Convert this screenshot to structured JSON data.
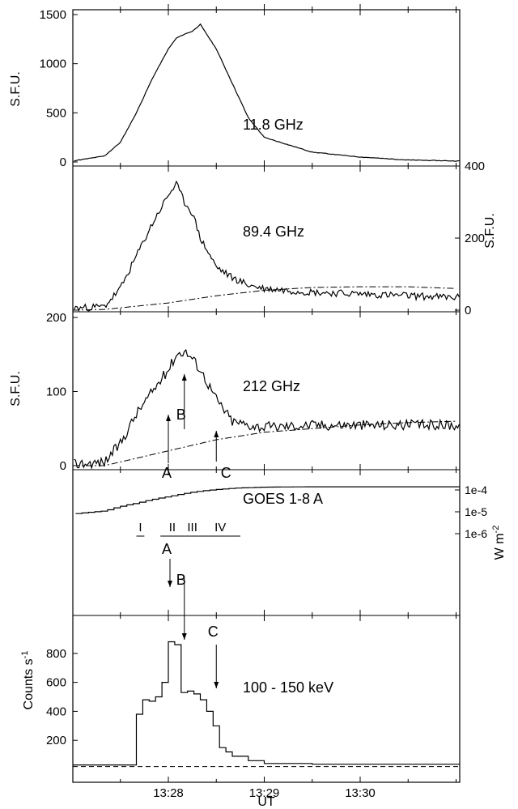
{
  "chart_data": [
    {
      "type": "line",
      "panel": "11.8 GHz",
      "label": "11.8 GHz",
      "ylabel": "S.F.U.",
      "yticks": [
        "0",
        "500",
        "1000",
        "1500"
      ],
      "ylim": [
        0,
        1500
      ],
      "x_time": [
        "13:26:30",
        "13:27:00",
        "13:27:20",
        "13:27:30",
        "13:27:40",
        "13:27:50",
        "13:28:00",
        "13:28:05",
        "13:28:10",
        "13:28:15",
        "13:28:20",
        "13:28:30",
        "13:28:40",
        "13:28:50",
        "13:29:00",
        "13:29:30",
        "13:30:00",
        "13:30:30",
        "13:31:00"
      ],
      "y": [
        0,
        10,
        60,
        200,
        500,
        850,
        1150,
        1260,
        1300,
        1330,
        1400,
        1150,
        800,
        450,
        250,
        100,
        50,
        20,
        10
      ]
    },
    {
      "type": "line",
      "panel": "89.4 GHz",
      "label": "89.4 GHz",
      "ylabel": "S.F.U.",
      "yticks": [
        "0",
        "200",
        "400"
      ],
      "ylim": [
        0,
        400
      ],
      "x_time": [
        "13:26:30",
        "13:27:00",
        "13:27:20",
        "13:27:30",
        "13:27:40",
        "13:27:50",
        "13:28:00",
        "13:28:05",
        "13:28:10",
        "13:28:15",
        "13:28:20",
        "13:28:30",
        "13:28:40",
        "13:28:50",
        "13:29:00",
        "13:29:30",
        "13:30:00",
        "13:30:30",
        "13:31:00"
      ],
      "y": [
        0,
        5,
        10,
        60,
        150,
        240,
        320,
        350,
        300,
        270,
        200,
        120,
        90,
        70,
        60,
        50,
        45,
        40,
        35
      ],
      "background_x_time": [
        "13:26:30",
        "13:27:20",
        "13:28:00",
        "13:28:30",
        "13:29:00",
        "13:29:30",
        "13:30:00",
        "13:30:30",
        "13:31:00"
      ],
      "background_y": [
        0,
        2,
        20,
        40,
        55,
        63,
        65,
        65,
        60
      ]
    },
    {
      "type": "line",
      "panel": "212 GHz",
      "label": "212 GHz",
      "ylabel": "S.F.U.",
      "yticks": [
        "0",
        "100",
        "200"
      ],
      "ylim": [
        0,
        200
      ],
      "x_time": [
        "13:26:30",
        "13:27:00",
        "13:27:20",
        "13:27:30",
        "13:27:40",
        "13:27:50",
        "13:28:00",
        "13:28:05",
        "13:28:10",
        "13:28:15",
        "13:28:20",
        "13:28:30",
        "13:28:40",
        "13:28:50",
        "13:29:00",
        "13:29:30",
        "13:30:00",
        "13:30:30",
        "13:31:00"
      ],
      "y": [
        0,
        2,
        5,
        30,
        70,
        100,
        130,
        150,
        155,
        145,
        130,
        90,
        60,
        55,
        52,
        55,
        55,
        55,
        55
      ],
      "background_x_time": [
        "13:26:30",
        "13:27:20",
        "13:27:40",
        "13:28:00",
        "13:28:30",
        "13:29:00",
        "13:29:30",
        "13:30:00",
        "13:30:30",
        "13:31:00"
      ],
      "background_y": [
        0,
        0,
        10,
        20,
        35,
        45,
        50,
        55,
        58,
        60
      ],
      "markers": [
        {
          "label": "A",
          "time": "13:28:00"
        },
        {
          "label": "B",
          "time": "13:28:10"
        },
        {
          "label": "C",
          "time": "13:28:30"
        }
      ]
    },
    {
      "type": "line",
      "panel": "GOES 1-8 A",
      "label": "GOES 1-8 A",
      "ylabel": "W m-2",
      "yscale": "log",
      "yticks": [
        "1e-6",
        "1e-5",
        "1e-4"
      ],
      "ylim": [
        1e-07,
        0.0003
      ],
      "x_time": [
        "13:26:30",
        "13:27:00",
        "13:27:20",
        "13:27:40",
        "13:28:00",
        "13:28:20",
        "13:28:40",
        "13:29:00",
        "13:29:30",
        "13:30:00",
        "13:30:30",
        "13:31:00"
      ],
      "y": [
        6e-06,
        8e-06,
        1.1e-05,
        2.5e-05,
        5e-05,
        9e-05,
        0.00012,
        0.000135,
        0.00014,
        0.00014,
        0.00014,
        0.00014
      ],
      "phases": [
        {
          "label": "I",
          "start": "13:27:40",
          "end": "13:27:45"
        },
        {
          "label": "II",
          "start": "13:27:55",
          "end": "13:28:10"
        },
        {
          "label": "III",
          "start": "13:28:10",
          "end": "13:28:20"
        },
        {
          "label": "IV",
          "start": "13:28:20",
          "end": "13:28:45"
        }
      ]
    },
    {
      "type": "line",
      "panel": "100 - 150 keV",
      "label": "100 - 150 keV",
      "ylabel": "Counts s",
      "ylabel_sup": "-1",
      "yticks": [
        "200",
        "400",
        "600",
        "800"
      ],
      "ylim": [
        0,
        950
      ],
      "step": true,
      "x_time": [
        "13:26:30",
        "13:27:00",
        "13:27:30",
        "13:27:40",
        "13:27:44",
        "13:27:48",
        "13:27:52",
        "13:27:56",
        "13:28:00",
        "13:28:04",
        "13:28:08",
        "13:28:12",
        "13:28:16",
        "13:28:20",
        "13:28:24",
        "13:28:28",
        "13:28:32",
        "13:28:36",
        "13:28:40",
        "13:28:50",
        "13:29:00",
        "13:29:30",
        "13:30:00",
        "13:30:30",
        "13:31:00"
      ],
      "y": [
        30,
        30,
        30,
        380,
        480,
        470,
        500,
        600,
        880,
        860,
        530,
        540,
        520,
        480,
        400,
        300,
        150,
        120,
        90,
        60,
        40,
        35,
        35,
        35,
        35
      ],
      "baseline": 30,
      "markers": [
        {
          "label": "A",
          "time": "13:28:00"
        },
        {
          "label": "B",
          "time": "13:28:10"
        },
        {
          "label": "C",
          "time": "13:28:30"
        }
      ]
    }
  ],
  "x_axis": {
    "label": "UT",
    "ticks": [
      "13:28",
      "13:29",
      "13:30"
    ],
    "range": [
      "13:26:30",
      "13:31:10"
    ]
  }
}
